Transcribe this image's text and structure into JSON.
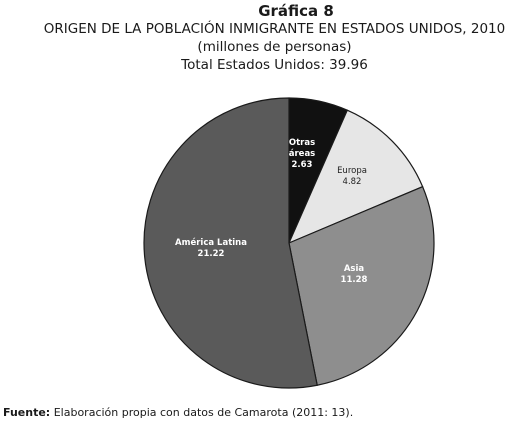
{
  "figure_number": "Gráfica 8",
  "source": {
    "label": "Fuente:",
    "text": "Elaboración propia con datos de Camarota (2011: 13)."
  },
  "chart_data": {
    "type": "pie",
    "title": "ORIGEN DE LA POBLACIÓN INMIGRANTE EN ESTADOS UNIDOS, 2010",
    "subtitle": "(millones de personas)",
    "total_label": "Total Estados Unidos: 39.96",
    "start_angle_deg": 0,
    "direction": "clockwise",
    "slices": [
      {
        "label": "Otras áreas",
        "label_lines": [
          "Otras",
          "áreas"
        ],
        "value": 2.63,
        "value_text": "2.63",
        "color": "#111111",
        "text_color": "#ffffff",
        "bold": true
      },
      {
        "label": "Europa",
        "label_lines": [
          "Europa"
        ],
        "value": 4.82,
        "value_text": "4.82",
        "color": "#e6e6e6",
        "text_color": "#222222",
        "bold": false
      },
      {
        "label": "Asia",
        "label_lines": [
          "Asia"
        ],
        "value": 11.28,
        "value_text": "11.28",
        "color": "#8e8e8e",
        "text_color": "#ffffff",
        "bold": true
      },
      {
        "label": "América Latina",
        "label_lines": [
          "América Latina"
        ],
        "value": 21.22,
        "value_text": "21.22",
        "color": "#5a5a5a",
        "text_color": "#ffffff",
        "bold": true
      }
    ]
  }
}
